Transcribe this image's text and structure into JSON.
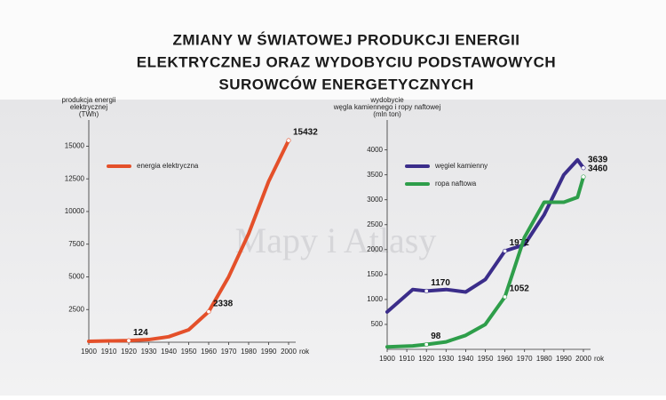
{
  "title": [
    "ZMIANY W ŚWIATOWEJ PRODUKCJI ENERGII",
    "ELEKTRYCZNEJ ORAZ WYDOBYCIU PODSTAWOWYCH",
    "SUROWCÓW ENERGETYCZNYCH"
  ],
  "watermark": "Mapy i Atlasy",
  "chart_data": [
    {
      "type": "line",
      "ylabel": [
        "produkcja energii",
        "elektrycznej",
        "(TWh)"
      ],
      "xlabel": "rok",
      "x": [
        1900,
        1910,
        1920,
        1930,
        1940,
        1950,
        1960,
        1970,
        1980,
        1990,
        2000
      ],
      "series": [
        {
          "name": "energia elektryczna",
          "color": "#e4502a",
          "values": [
            70,
            100,
            124,
            200,
            420,
            950,
            2338,
            5000,
            8300,
            12300,
            15432
          ],
          "value_labels": [
            null,
            null,
            "124",
            null,
            null,
            null,
            "2338",
            null,
            null,
            null,
            "15432"
          ]
        }
      ],
      "xlim": [
        1900,
        2000
      ],
      "xticks": [
        1900,
        1910,
        1920,
        1930,
        1940,
        1950,
        1960,
        1970,
        1980,
        1990,
        2000
      ],
      "ylim": [
        0,
        17000
      ],
      "yticks": [
        2500,
        5000,
        7500,
        10000,
        12500,
        15000
      ],
      "legend": "upper left"
    },
    {
      "type": "line",
      "ylabel": [
        "wydobycie",
        "węgla kamiennego i ropy naftowej",
        "(mln ton)"
      ],
      "xlabel": "rok",
      "x": [
        1900,
        1913,
        1920,
        1930,
        1940,
        1950,
        1960,
        1970,
        1980,
        1990,
        1997,
        2000
      ],
      "series": [
        {
          "name": "węgiel kamienny",
          "color": "#3b2d8a",
          "values": [
            750,
            1200,
            1170,
            1200,
            1150,
            1400,
            1972,
            2100,
            2700,
            3500,
            3800,
            3639
          ],
          "value_labels": [
            null,
            null,
            "1170",
            null,
            null,
            null,
            "1972",
            null,
            null,
            null,
            null,
            "3639"
          ]
        },
        {
          "name": "ropa naftowa",
          "color": "#2e9e4a",
          "values": [
            50,
            70,
            98,
            150,
            280,
            500,
            1052,
            2250,
            2950,
            2950,
            3050,
            3460
          ],
          "value_labels": [
            null,
            null,
            "98",
            null,
            null,
            null,
            "1052",
            null,
            null,
            null,
            null,
            "3460"
          ]
        }
      ],
      "xlim": [
        1900,
        2000
      ],
      "xticks": [
        1900,
        1910,
        1920,
        1930,
        1940,
        1950,
        1960,
        1970,
        1980,
        1990,
        2000
      ],
      "ylim": [
        0,
        4600
      ],
      "yticks": [
        500,
        1000,
        1500,
        2000,
        2500,
        3000,
        3500,
        4000
      ],
      "legend": "upper left"
    }
  ]
}
